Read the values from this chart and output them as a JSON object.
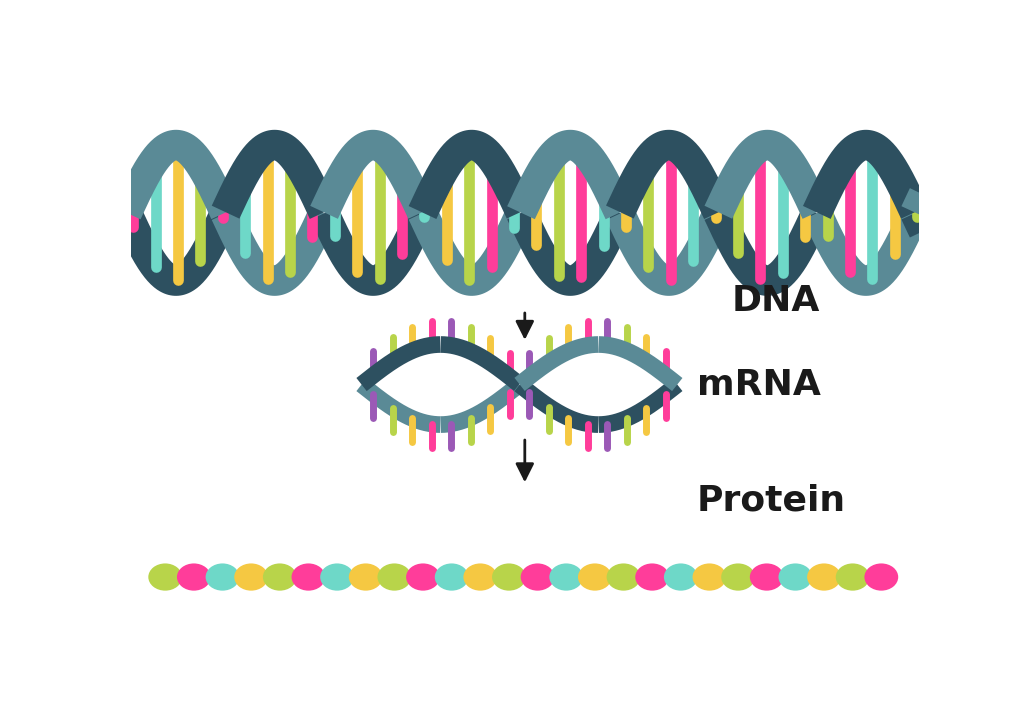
{
  "background_color": "#ffffff",
  "dna_strand1_color": "#5a8a96",
  "dna_strand2_color": "#2d5060",
  "dna_base_colors": [
    "#ff3d9a",
    "#6ed8c8",
    "#f5c842",
    "#b8d44a"
  ],
  "mrna_strand_color": "#5a8a96",
  "mrna_strand2_color": "#2d5060",
  "mrna_base_colors": [
    "#9b59b6",
    "#b8d44a",
    "#f5c842",
    "#ff3d9a"
  ],
  "protein_sequence": [
    "#b8d44a",
    "#ff3d9a",
    "#6ed8c8",
    "#f5c842",
    "#b8d44a",
    "#ff3d9a",
    "#6ed8c8",
    "#f5c842",
    "#b8d44a",
    "#ff3d9a",
    "#6ed8c8",
    "#f5c842",
    "#b8d44a",
    "#ff3d9a",
    "#6ed8c8",
    "#f5c842",
    "#b8d44a",
    "#ff3d9a",
    "#6ed8c8",
    "#f5c842",
    "#b8d44a",
    "#ff3d9a",
    "#6ed8c8",
    "#f5c842",
    "#b8d44a",
    "#ff3d9a"
  ],
  "arrow_color": "#1a1a1a",
  "label_dna": "DNA",
  "label_mrna": "mRNA",
  "label_protein": "Protein",
  "label_fontsize": 26,
  "label_fontweight": "bold"
}
